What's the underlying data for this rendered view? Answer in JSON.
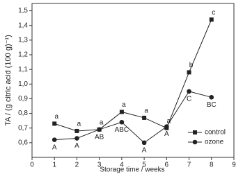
{
  "chart_data": {
    "type": "line",
    "x_label": "Storage time / weeks",
    "y_label": "TA / (g citric acid (100 g)⁻¹)",
    "x": [
      1,
      2,
      3,
      4,
      5,
      6,
      7,
      8
    ],
    "series": [
      {
        "name": "control",
        "color": "#222222",
        "marker": "square",
        "values": [
          0.73,
          0.68,
          0.69,
          0.81,
          0.77,
          0.7,
          1.08,
          1.44
        ],
        "annotations": [
          "a",
          "a",
          "a",
          "a",
          "a",
          "a",
          "b",
          "c"
        ]
      },
      {
        "name": "ozone",
        "color": "#222222",
        "marker": "circle",
        "values": [
          0.62,
          0.63,
          0.69,
          0.74,
          0.6,
          0.71,
          0.95,
          0.91
        ],
        "annotations": [
          "A",
          "A",
          "AB",
          "ABC",
          "A",
          "A",
          "C",
          "BC"
        ]
      }
    ],
    "xlim": [
      0,
      9
    ],
    "xticks": [
      0,
      1,
      2,
      3,
      4,
      5,
      6,
      7,
      8,
      9
    ],
    "ylim": [
      0.5,
      1.55
    ],
    "yticks": [
      {
        "value": 0.6,
        "label": "0,6"
      },
      {
        "value": 0.7,
        "label": "0,7"
      },
      {
        "value": 0.8,
        "label": "0,8"
      },
      {
        "value": 0.9,
        "label": "0,9"
      },
      {
        "value": 1.0,
        "label": "1,0"
      },
      {
        "value": 1.1,
        "label": "1,1"
      },
      {
        "value": 1.2,
        "label": "1,2"
      },
      {
        "value": 1.3,
        "label": "1,3"
      },
      {
        "value": 1.4,
        "label": "1,4"
      },
      {
        "value": 1.5,
        "label": "1,5"
      }
    ],
    "legend": "lower right"
  }
}
